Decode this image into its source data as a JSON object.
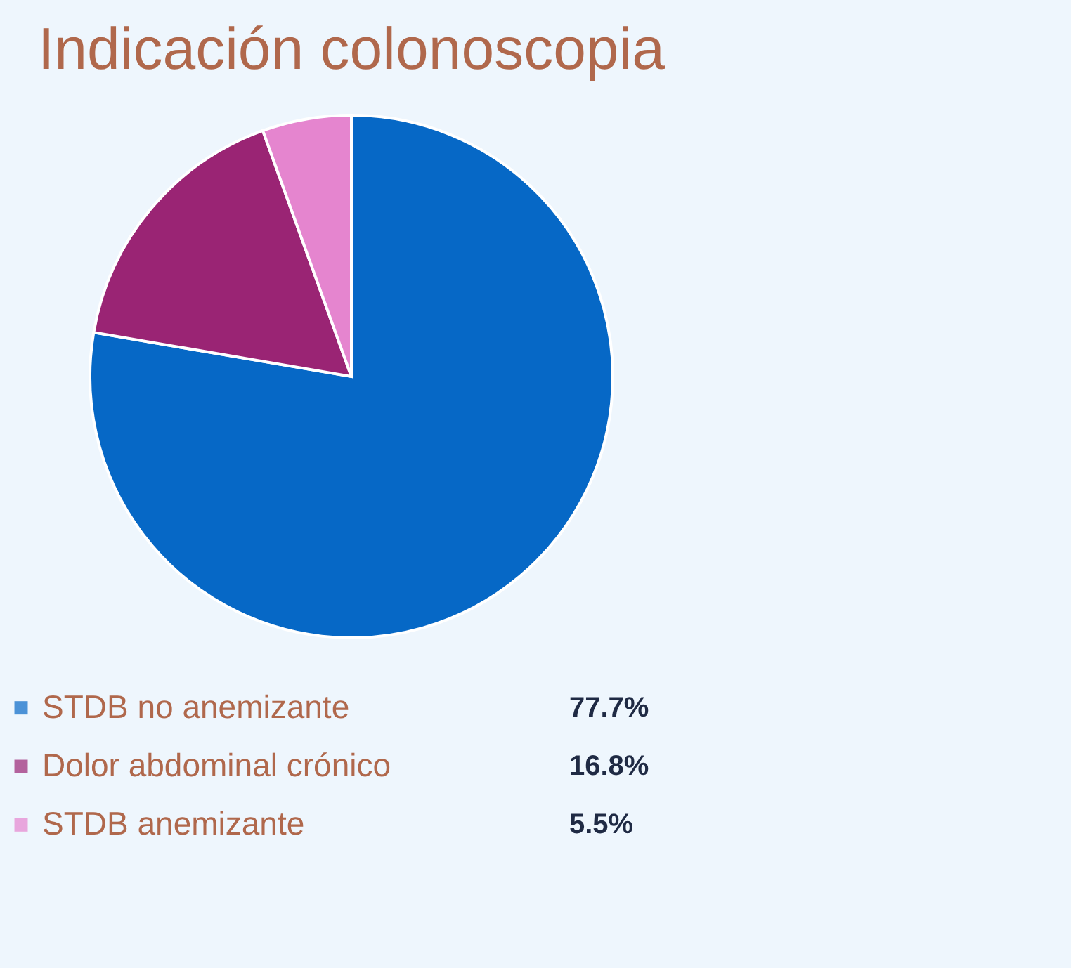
{
  "chart_data": {
    "type": "pie",
    "title": "Indicación colonoscopia",
    "categories": [
      "STDB no anemizante",
      "Dolor abdominal crónico",
      "STDB anemizante"
    ],
    "values": [
      77.7,
      16.8,
      5.5
    ],
    "colors": [
      "#0668c6",
      "#9a2474",
      "#e585cf"
    ],
    "value_labels": [
      "77.7%",
      "16.8%",
      "5.5%"
    ],
    "legend": "bottom"
  }
}
